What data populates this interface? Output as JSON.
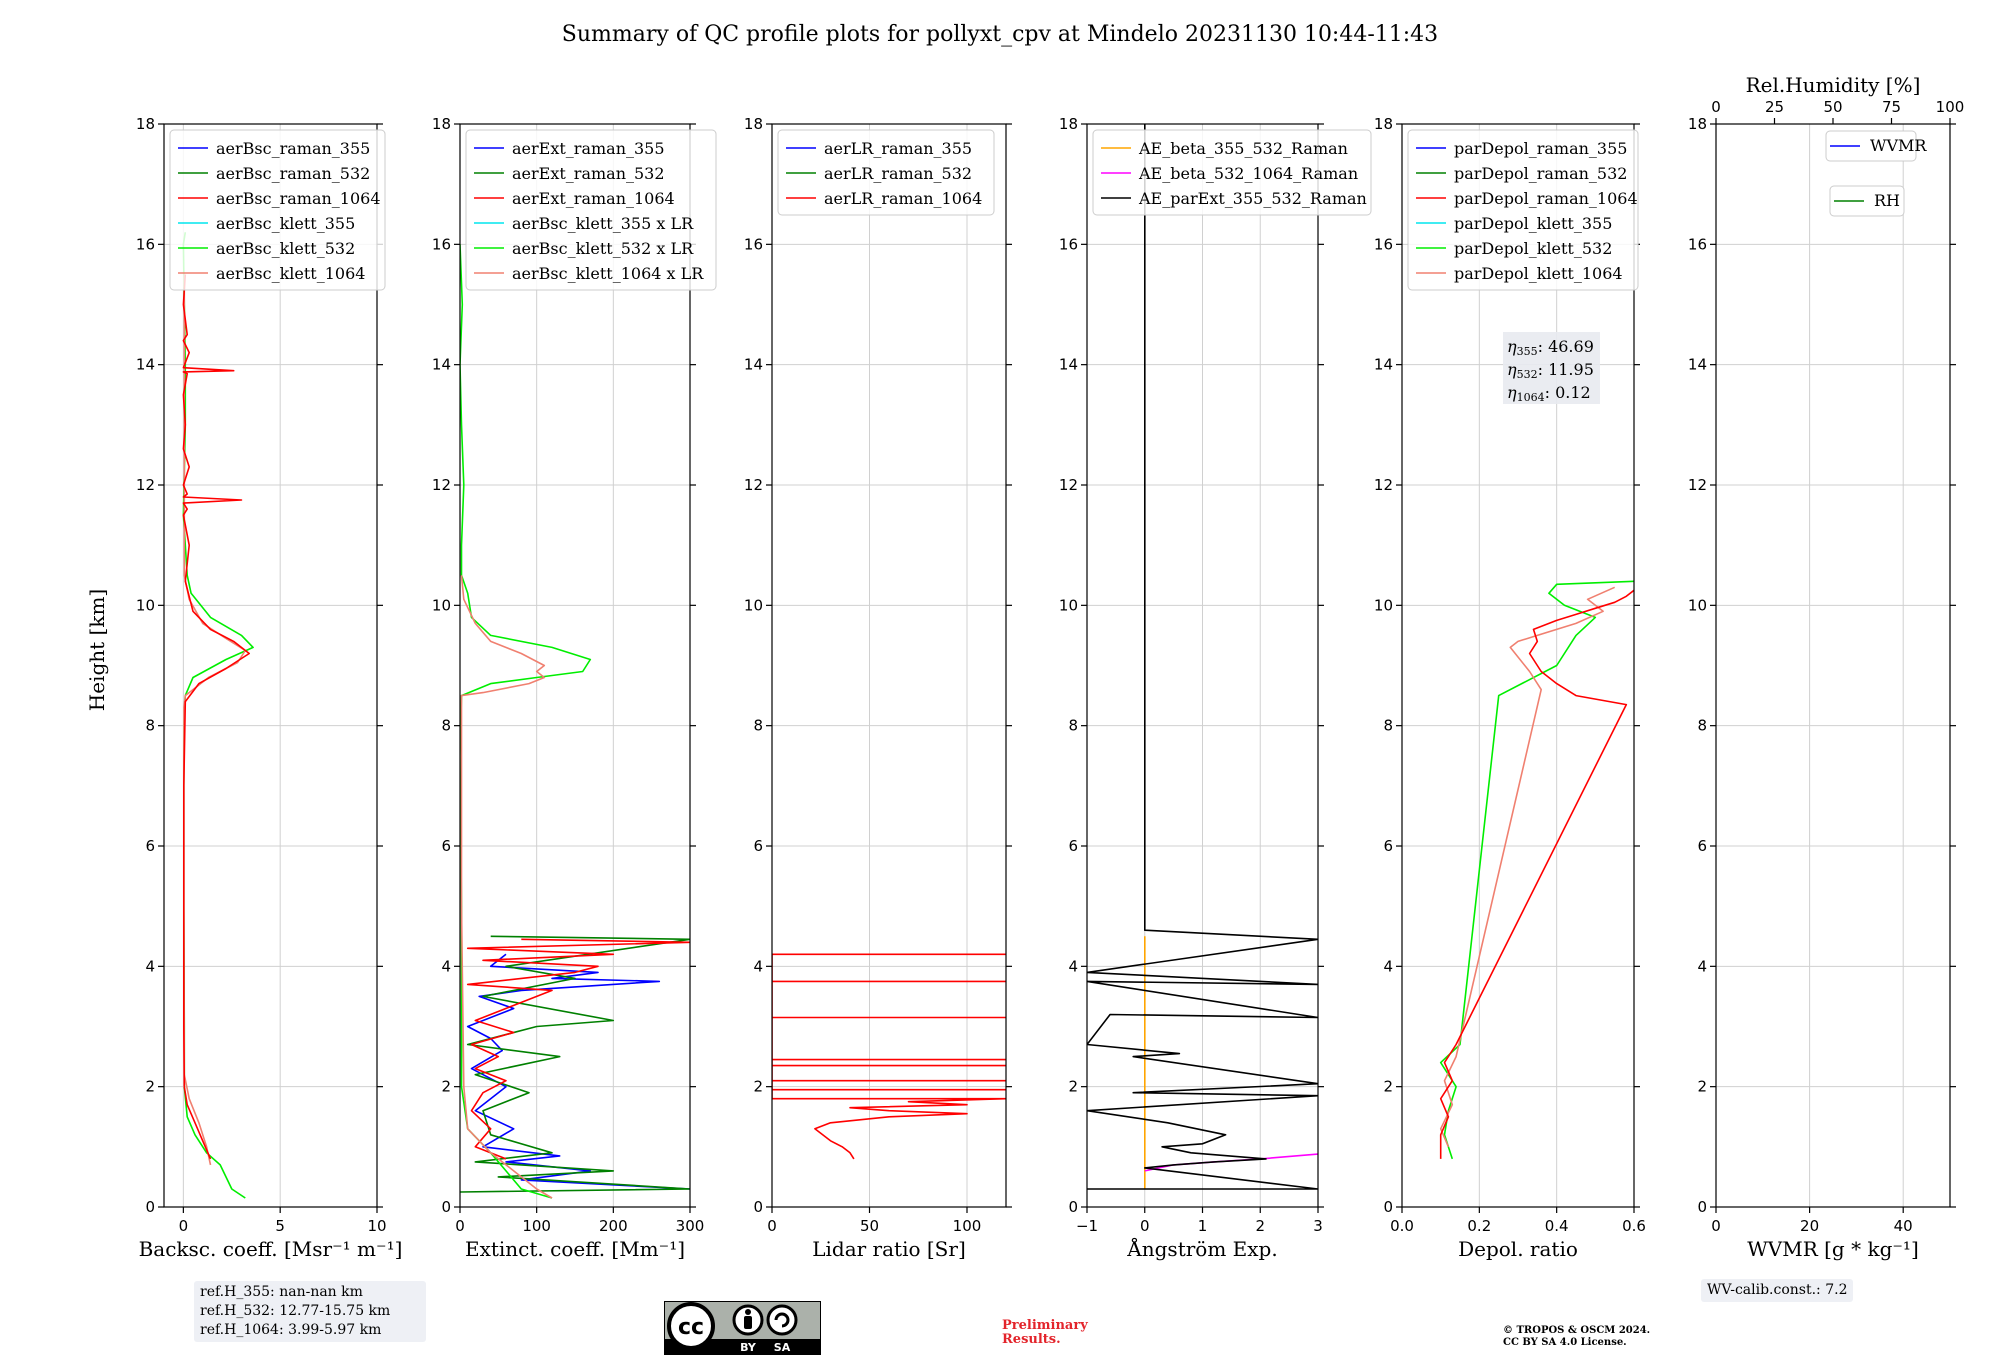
{
  "figure": {
    "title": "Summary of QC profile plots for pollyxt_cpv at Mindelo 20231130 10:44-11:43",
    "ylabel": "Height [km]"
  },
  "chart_data": [
    {
      "type": "line",
      "id": "bsc",
      "xlabel": "Backsc. coeff. [Msr⁻¹ m⁻¹]",
      "xlim": [
        -1,
        10
      ],
      "ylim": [
        0,
        18
      ],
      "xticks": [
        0,
        5,
        10
      ],
      "xticklabels": [
        "0",
        "5",
        "10"
      ],
      "yticks": [
        0,
        2,
        4,
        6,
        8,
        10,
        12,
        14,
        16,
        18
      ],
      "legend": [
        "aerBsc_raman_355",
        "aerBsc_raman_532",
        "aerBsc_raman_1064",
        "aerBsc_klett_355",
        "aerBsc_klett_532",
        "aerBsc_klett_1064"
      ],
      "series": [
        {
          "name": "aerBsc_klett_532",
          "color": "#00ee00",
          "x": [
            3.2,
            2.5,
            1.9,
            1.2,
            0.6,
            0.2,
            0.05,
            0.05,
            0.02,
            0.02,
            0.03,
            0.1,
            0.5,
            2.2,
            3.6,
            3.0,
            1.4,
            0.4,
            0.2,
            0.0,
            0.1,
            0.1,
            0.05,
            0.0,
            0.1
          ],
          "y": [
            0.15,
            0.3,
            0.7,
            0.9,
            1.2,
            1.5,
            2.0,
            3.0,
            5.0,
            7.0,
            8.0,
            8.5,
            8.8,
            9.1,
            9.3,
            9.5,
            9.8,
            10.2,
            10.5,
            11.5,
            13.0,
            14.0,
            15.0,
            16.0,
            16.2
          ]
        },
        {
          "name": "aerBsc_klett_1064",
          "color": "#f08070",
          "x": [
            1.4,
            1.2,
            0.8,
            0.3,
            0.05,
            0.02,
            0.02,
            0.03,
            0.1,
            1.3,
            2.8,
            3.2,
            2.2,
            1.0,
            0.3,
            0.05,
            0.05,
            0.05,
            0.05
          ],
          "y": [
            0.7,
            1.0,
            1.4,
            1.8,
            2.2,
            5.0,
            7.0,
            8.3,
            8.5,
            8.8,
            9.05,
            9.25,
            9.45,
            9.7,
            10.1,
            10.5,
            12.0,
            14.0,
            15.5
          ]
        },
        {
          "name": "aerBsc_raman_1064",
          "color": "#ff0000",
          "x": [
            1.4,
            1.0,
            0.6,
            0.2,
            0.05,
            0.02,
            0.02,
            0.02,
            0.1,
            0.8,
            2.2,
            3.4,
            2.6,
            1.4,
            0.5,
            0.1,
            0.3,
            0.0,
            0.2,
            0.0,
            3.0,
            0.0,
            0.2,
            0.0,
            0.3,
            0.0,
            0.1,
            0.0,
            0.2,
            0.0,
            2.6,
            0.0,
            0.3,
            0.0,
            0.2,
            0.0,
            0.1
          ],
          "y": [
            0.8,
            1.1,
            1.4,
            1.7,
            2.0,
            3.0,
            5.0,
            7.0,
            8.4,
            8.7,
            8.95,
            9.2,
            9.4,
            9.6,
            9.9,
            10.4,
            11.0,
            11.5,
            11.6,
            11.7,
            11.75,
            11.8,
            11.85,
            12.0,
            12.3,
            12.6,
            13.0,
            13.5,
            13.85,
            13.88,
            13.9,
            13.95,
            14.2,
            14.4,
            14.5,
            15.0,
            15.5
          ]
        }
      ]
    },
    {
      "type": "line",
      "id": "ext",
      "xlabel": "Extinct. coeff. [Mm⁻¹]",
      "xlim": [
        0,
        300
      ],
      "ylim": [
        0,
        18
      ],
      "xticks": [
        0,
        100,
        200,
        300
      ],
      "xticklabels": [
        "0",
        "100",
        "200",
        "300"
      ],
      "yticks": [
        0,
        2,
        4,
        6,
        8,
        10,
        12,
        14,
        16,
        18
      ],
      "legend": [
        "aerExt_raman_355",
        "aerExt_raman_532",
        "aerExt_raman_1064",
        "aerBsc_klett_355 x LR",
        "aerBsc_klett_532 x LR",
        "aerBsc_klett_1064 x LR"
      ],
      "series": [
        {
          "name": "aerExt_raman_355",
          "color": "#0000ff",
          "x": [
            300,
            80,
            170,
            60,
            130,
            30,
            70,
            20,
            60,
            15,
            55,
            40,
            10,
            70,
            25,
            80,
            260,
            120,
            180,
            40,
            60
          ],
          "y": [
            0.3,
            0.45,
            0.6,
            0.75,
            0.85,
            1.0,
            1.3,
            1.6,
            2.0,
            2.3,
            2.6,
            2.8,
            3.0,
            3.3,
            3.5,
            3.6,
            3.75,
            3.8,
            3.9,
            4.0,
            4.2
          ]
        },
        {
          "name": "aerExt_raman_532",
          "color": "#008000",
          "x": [
            0,
            300,
            50,
            200,
            20,
            120,
            40,
            30,
            90,
            20,
            130,
            10,
            100,
            200,
            30,
            150,
            60,
            300,
            40
          ],
          "y": [
            0.25,
            0.3,
            0.5,
            0.6,
            0.75,
            0.9,
            1.2,
            1.6,
            1.9,
            2.2,
            2.5,
            2.7,
            3.0,
            3.1,
            3.5,
            3.8,
            4.0,
            4.45,
            4.5
          ]
        },
        {
          "name": "aerExt_raman_1064",
          "color": "#ff0000",
          "x": [
            60,
            20,
            40,
            15,
            30,
            60,
            20,
            50,
            15,
            70,
            20,
            120,
            10,
            150,
            180,
            30,
            200,
            10,
            300,
            80
          ],
          "y": [
            0.8,
            1.0,
            1.3,
            1.6,
            1.9,
            2.1,
            2.3,
            2.5,
            2.7,
            2.9,
            3.1,
            3.6,
            3.7,
            3.9,
            4.0,
            4.1,
            4.2,
            4.3,
            4.4,
            4.45
          ]
        },
        {
          "name": "aerBsc_klett_532 x LR",
          "color": "#00ee00",
          "x": [
            120,
            80,
            60,
            40,
            10,
            2,
            2,
            0,
            2,
            40,
            100,
            160,
            170,
            120,
            40,
            15,
            10,
            2,
            2,
            5,
            2,
            0,
            3,
            0
          ],
          "y": [
            0.15,
            0.3,
            0.6,
            0.9,
            1.3,
            2.0,
            5.0,
            7.5,
            8.5,
            8.7,
            8.8,
            8.9,
            9.1,
            9.3,
            9.5,
            9.8,
            10.2,
            10.5,
            11.0,
            12.0,
            13.0,
            14.0,
            15.0,
            16.0
          ]
        },
        {
          "name": "aerBsc_klett_1064 x LR",
          "color": "#f08070",
          "x": [
            120,
            100,
            70,
            40,
            10,
            5,
            2,
            2,
            30,
            90,
            110,
            100,
            110,
            80,
            40,
            20,
            5,
            2
          ],
          "y": [
            0.15,
            0.3,
            0.6,
            0.9,
            1.3,
            2.0,
            5.0,
            8.5,
            8.55,
            8.7,
            8.8,
            8.9,
            9.0,
            9.2,
            9.4,
            9.7,
            10.1,
            10.5
          ]
        }
      ]
    },
    {
      "type": "line",
      "id": "lr",
      "xlabel": "Lidar ratio [Sr]",
      "xlim": [
        0,
        120
      ],
      "ylim": [
        0,
        18
      ],
      "xticks": [
        0,
        50,
        100
      ],
      "xticklabels": [
        "0",
        "50",
        "100"
      ],
      "yticks": [
        0,
        2,
        4,
        6,
        8,
        10,
        12,
        14,
        16,
        18
      ],
      "legend": [
        "aerLR_raman_355",
        "aerLR_raman_532",
        "aerLR_raman_1064"
      ],
      "series": [
        {
          "name": "aerLR_raman_1064",
          "color": "#ff0000",
          "x": [
            42,
            40,
            36,
            30,
            26,
            22,
            30,
            60,
            100,
            60,
            40,
            100,
            70,
            120,
            0,
            0,
            120,
            0,
            0,
            120,
            0,
            0,
            120,
            0,
            0,
            120,
            0,
            0,
            120,
            0,
            0,
            120,
            0,
            0,
            120
          ],
          "y": [
            0.8,
            0.9,
            1.0,
            1.1,
            1.2,
            1.3,
            1.4,
            1.5,
            1.55,
            1.6,
            1.65,
            1.7,
            1.75,
            1.8,
            1.8,
            1.95,
            1.95,
            1.95,
            2.1,
            2.1,
            2.1,
            2.35,
            2.35,
            2.35,
            2.45,
            2.45,
            2.45,
            3.15,
            3.15,
            3.15,
            3.75,
            3.75,
            3.75,
            4.2,
            4.2
          ]
        }
      ]
    },
    {
      "type": "line",
      "id": "ae",
      "xlabel": "Ångström Exp.",
      "xlim": [
        -1,
        3
      ],
      "ylim": [
        0,
        18
      ],
      "xticks": [
        -1,
        0,
        1,
        2,
        3
      ],
      "xticklabels": [
        "−1",
        "0",
        "1",
        "2",
        "3"
      ],
      "yticks": [
        0,
        2,
        4,
        6,
        8,
        10,
        12,
        14,
        16,
        18
      ],
      "legend": [
        "AE_beta_355_532_Raman",
        "AE_beta_532_1064_Raman",
        "AE_parExt_355_532_Raman"
      ],
      "series": [
        {
          "name": "AE_beta_355_532_Raman",
          "color": "#ffa500",
          "x": [
            0,
            0
          ],
          "y": [
            0.3,
            4.5
          ]
        },
        {
          "name": "AE_beta_532_1064_Raman",
          "color": "#ff00ff",
          "x": [
            0.0,
            0.5,
            1.2,
            2.0,
            3.0
          ],
          "y": [
            0.6,
            0.7,
            0.75,
            0.8,
            0.88
          ]
        },
        {
          "name": "AE_parExt_355_532_Raman",
          "color": "#000000",
          "x": [
            -1,
            3,
            0,
            0.5,
            1.2,
            2.1,
            0.8,
            0.3,
            1.0,
            1.4,
            0.4,
            -1.0,
            3.0,
            -0.2,
            3.0,
            -0.2,
            0.6,
            -1,
            -0.6,
            3.0,
            -1,
            3.0,
            -1,
            3.0,
            0,
            0,
            0
          ],
          "y": [
            0.3,
            0.3,
            0.65,
            0.7,
            0.75,
            0.8,
            0.9,
            1.0,
            1.05,
            1.2,
            1.4,
            1.6,
            1.85,
            1.9,
            2.05,
            2.5,
            2.55,
            2.7,
            3.2,
            3.15,
            3.75,
            3.7,
            3.9,
            4.45,
            4.6,
            10.0,
            18.0
          ]
        }
      ]
    },
    {
      "type": "line",
      "id": "depol",
      "xlabel": "Depol. ratio",
      "xlim": [
        0,
        0.6
      ],
      "ylim": [
        0,
        18
      ],
      "xticks": [
        0,
        0.2,
        0.4,
        0.6
      ],
      "xticklabels": [
        "0.0",
        "0.2",
        "0.4",
        "0.6"
      ],
      "yticks": [
        0,
        2,
        4,
        6,
        8,
        10,
        12,
        14,
        16,
        18
      ],
      "legend": [
        "parDepol_raman_355",
        "parDepol_raman_532",
        "parDepol_raman_1064",
        "parDepol_klett_355",
        "parDepol_klett_532",
        "parDepol_klett_1064"
      ],
      "annotations": [
        {
          "sym": "η",
          "sub": "355",
          "value": ": 46.69"
        },
        {
          "sym": "η",
          "sub": "532",
          "value": ": 11.95"
        },
        {
          "sym": "η",
          "sub": "1064",
          "value": ": 0.12"
        }
      ],
      "series": [
        {
          "name": "parDepol_klett_532",
          "color": "#00ee00",
          "x": [
            0.13,
            0.11,
            0.12,
            0.14,
            0.1,
            0.15,
            0.25,
            0.4,
            0.45,
            0.5,
            0.42,
            0.38,
            0.4,
            0.6
          ],
          "y": [
            0.8,
            1.2,
            1.6,
            2.0,
            2.4,
            2.7,
            8.5,
            9.0,
            9.5,
            9.8,
            10.0,
            10.2,
            10.35,
            10.4
          ]
        },
        {
          "name": "parDepol_klett_1064",
          "color": "#f08070",
          "x": [
            0.12,
            0.1,
            0.13,
            0.11,
            0.14,
            0.36,
            0.33,
            0.28,
            0.3,
            0.35,
            0.45,
            0.52,
            0.48,
            0.55
          ],
          "y": [
            1.0,
            1.3,
            1.7,
            2.1,
            2.5,
            8.6,
            8.9,
            9.3,
            9.4,
            9.5,
            9.7,
            9.9,
            10.1,
            10.3
          ]
        },
        {
          "name": "parDepol_raman_1064",
          "color": "#ff0000",
          "x": [
            0.1,
            0.1,
            0.12,
            0.1,
            0.13,
            0.11,
            0.14,
            0.58,
            0.45,
            0.4,
            0.36,
            0.33,
            0.35,
            0.34,
            0.4,
            0.45,
            0.5,
            0.55,
            0.58,
            0.6
          ],
          "y": [
            0.8,
            1.2,
            1.5,
            1.8,
            2.1,
            2.4,
            2.7,
            8.35,
            8.5,
            8.7,
            8.9,
            9.2,
            9.4,
            9.6,
            9.75,
            9.85,
            9.95,
            10.05,
            10.15,
            10.25
          ]
        }
      ]
    },
    {
      "type": "line",
      "id": "wv",
      "xlabel": "WVMR [g * kg⁻¹]",
      "xlim": [
        0,
        50
      ],
      "ylim": [
        0,
        18
      ],
      "xticks": [
        0,
        20,
        40
      ],
      "xticklabels": [
        "0",
        "20",
        "40"
      ],
      "yticks": [
        0,
        2,
        4,
        6,
        8,
        10,
        12,
        14,
        16,
        18
      ],
      "top_axis": {
        "label": "Rel.Humidity [%]",
        "lim": [
          0,
          100
        ],
        "ticks": [
          0,
          25,
          50,
          75,
          100
        ],
        "ticklabels": [
          "0",
          "25",
          "50",
          "75",
          "100"
        ]
      },
      "legend": [
        "WVMR",
        "RH"
      ],
      "legend_colors": [
        "#0000ff",
        "#008000"
      ],
      "series": []
    }
  ],
  "ref_info": [
    "ref.H_355: nan-nan km",
    "ref.H_532: 12.77-15.75 km",
    "ref.H_1064: 3.99-5.97 km"
  ],
  "wv_calib": "WV-calib.const.: 7.2",
  "license_badge": {
    "cc": "cc",
    "by": "BY",
    "sa": "SA"
  },
  "preliminary": [
    "Preliminary",
    "Results."
  ],
  "copyright": [
    "© TROPOS & OSCM 2024.",
    "CC BY SA 4.0 License."
  ],
  "colors": {
    "raman_355": "#0000ff",
    "raman_532": "#008000",
    "raman_1064": "#ff0000",
    "klett_355": "#00e5ee",
    "klett_532": "#00ee00",
    "klett_1064": "#f08070",
    "ae_355_532": "#ffa500",
    "ae_532_1064": "#ff00ff",
    "ae_ext": "#000000",
    "grid": "#d0d0d0",
    "infobox": "#eef0f5",
    "preliminary": "#e3242b"
  }
}
